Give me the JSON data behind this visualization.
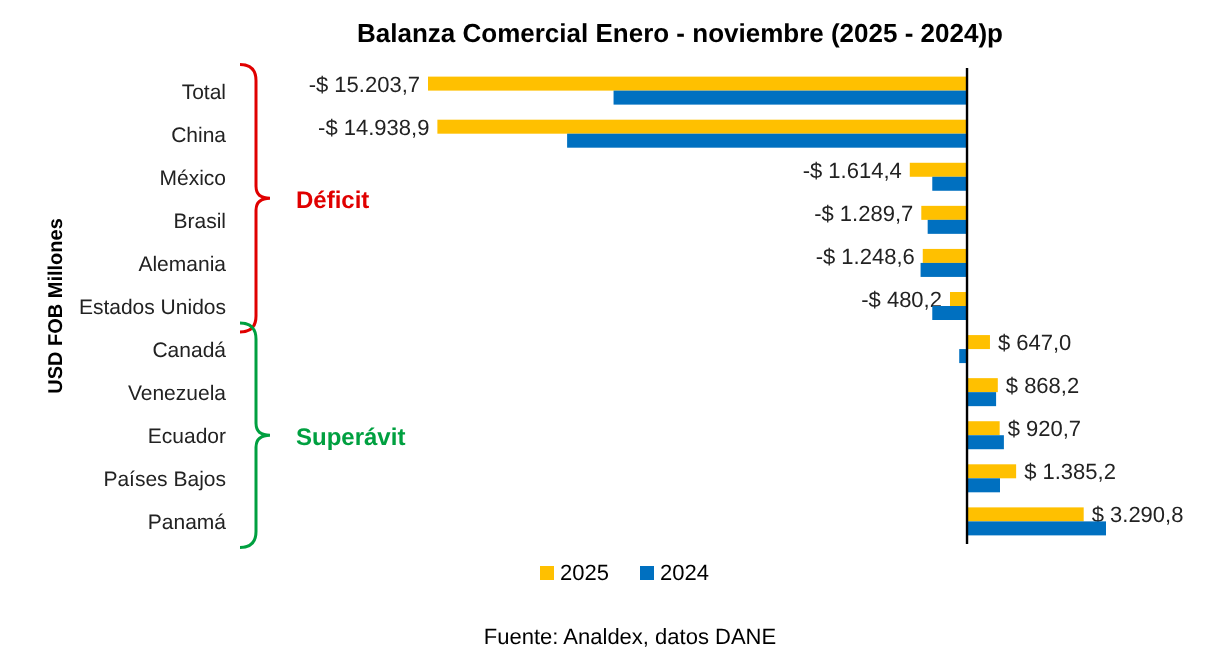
{
  "chart_data": {
    "type": "bar",
    "orientation": "horizontal",
    "title": "Balanza Comercial  Enero - noviembre (2025 - 2024)p",
    "ylabel": "USD FOB Millones",
    "categories": [
      "Total",
      "China",
      "México",
      "Brasil",
      "Alemania",
      "Estados Unidos",
      "Canadá",
      "Venezuela",
      "Ecuador",
      "Países Bajos",
      "Panamá"
    ],
    "series": [
      {
        "name": "2025",
        "color": "#ffc000",
        "values": [
          -15203.7,
          -14938.9,
          -1614.4,
          -1289.7,
          -1248.6,
          -480.2,
          647.0,
          868.2,
          920.7,
          1385.2,
          3290.8
        ],
        "value_labels": [
          "-$ 15.203,7",
          "-$ 14.938,9",
          "-$ 1.614,4",
          "-$ 1.289,7",
          "-$ 1.248,6",
          "-$ 480,2",
          "$ 647,0",
          "$ 868,2",
          "$ 920,7",
          "$ 1.385,2",
          "$ 3.290,8"
        ]
      },
      {
        "name": "2024",
        "color": "#0070c0",
        "values": [
          -9970,
          -11280,
          -980,
          -1110,
          -1310,
          -980,
          -220,
          820,
          1040,
          930,
          3920
        ]
      }
    ],
    "legend": "bottom",
    "annotations": [
      "Déficit",
      "Superávit",
      "Fuente: Analdex, datos DANE"
    ]
  }
}
